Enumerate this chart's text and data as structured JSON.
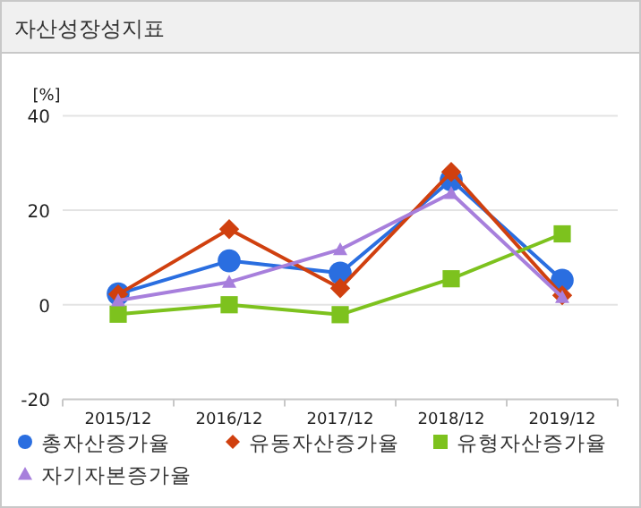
{
  "chart_data": {
    "type": "line",
    "title": "자산성장성지표",
    "ylabel": "[%]",
    "categories": [
      "2015/12",
      "2016/12",
      "2017/12",
      "2018/12",
      "2019/12"
    ],
    "ylim": [
      -20,
      40
    ],
    "yticks": [
      -20,
      0,
      20,
      40
    ],
    "grid": "y",
    "legend": "bottom",
    "series": [
      {
        "name": "총자산증가율",
        "color": "#2a6ee0",
        "marker": "circle",
        "values": [
          2.3,
          9.3,
          6.7,
          26.4,
          5.2
        ]
      },
      {
        "name": "유동자산증가율",
        "color": "#d0400f",
        "marker": "diamond",
        "values": [
          2.2,
          16.0,
          3.5,
          28.1,
          2.0
        ]
      },
      {
        "name": "유형자산증가율",
        "color": "#7dc21e",
        "marker": "square",
        "values": [
          -2.0,
          0.0,
          -2.1,
          5.5,
          15.0
        ]
      },
      {
        "name": "자기자본증가율",
        "color": "#a77fdc",
        "marker": "triangle",
        "values": [
          0.9,
          4.8,
          11.7,
          23.6,
          1.6
        ]
      }
    ]
  }
}
